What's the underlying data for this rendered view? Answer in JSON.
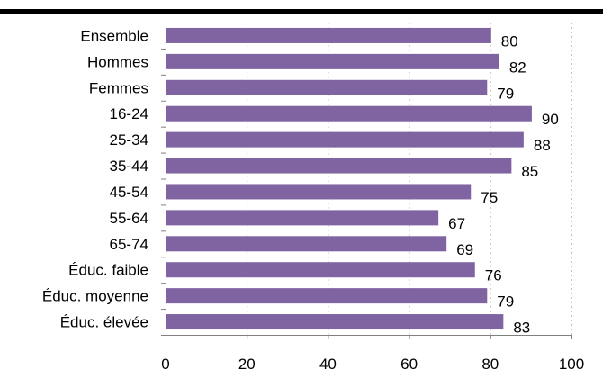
{
  "chart_data": {
    "type": "bar",
    "orientation": "horizontal",
    "title": "",
    "xlabel": "",
    "ylabel": "",
    "categories": [
      "Ensemble",
      "Hommes",
      "Femmes",
      "16-24",
      "25-34",
      "35-44",
      "45-54",
      "55-64",
      "65-74",
      "Éduc. faible",
      "Éduc. moyenne",
      "Éduc. élevée"
    ],
    "values": [
      80,
      82,
      79,
      90,
      88,
      85,
      75,
      67,
      69,
      76,
      79,
      83
    ],
    "xlim": [
      0,
      100
    ],
    "x_ticks": [
      "0",
      "20",
      "40",
      "60",
      "80",
      "100"
    ],
    "grid": "vertical dashed",
    "legend": "none",
    "bar_color": "#8064A2"
  }
}
